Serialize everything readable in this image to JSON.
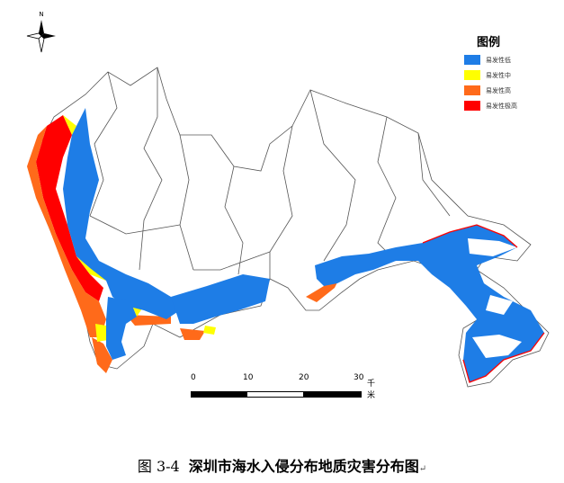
{
  "north_arrow": {
    "label": "N"
  },
  "legend": {
    "title": "图例",
    "items": [
      {
        "label": "易发性低",
        "color": "#1e7de6"
      },
      {
        "label": "易发性中",
        "color": "#ffff00"
      },
      {
        "label": "易发性高",
        "color": "#ff6a1a"
      },
      {
        "label": "易发性极高",
        "color": "#ff0000"
      }
    ]
  },
  "scale_bar": {
    "ticks": [
      "0",
      "10",
      "20",
      "30"
    ],
    "unit": "千米"
  },
  "caption": {
    "figure_number": "图 3-4",
    "title": "深圳市海水入侵分布地质灾害分布图",
    "mark": "↵"
  },
  "colors": {
    "low": "#1e7de6",
    "medium": "#ffff00",
    "high": "#ff6a1a",
    "very_high": "#ff0000",
    "district_line": "#555555"
  }
}
